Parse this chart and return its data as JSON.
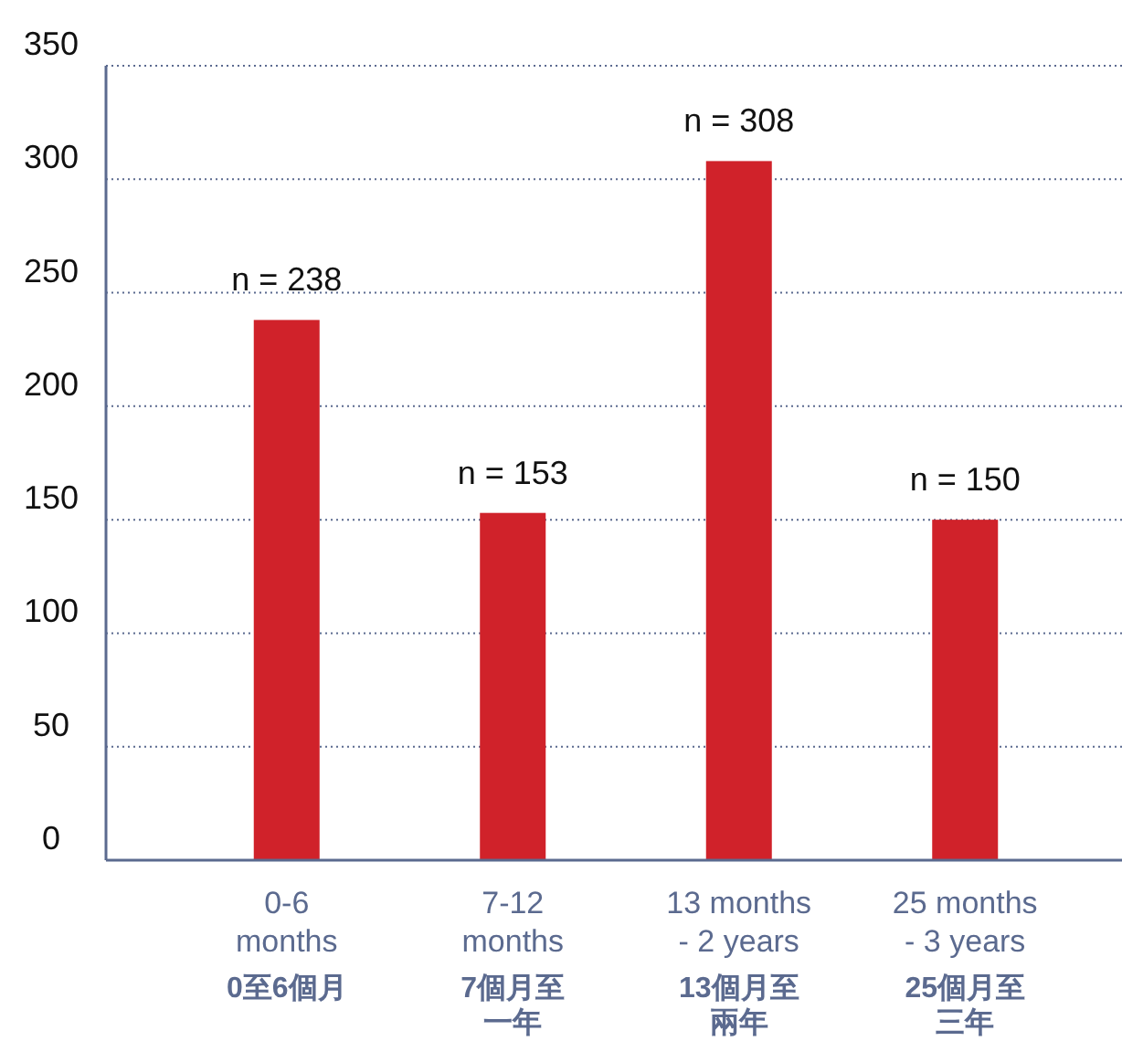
{
  "chart_data": {
    "type": "bar",
    "categories": [
      "0-6\nmonths\n0至6個月",
      "7-12\nmonths\n7個月至一年",
      "13 months\n- 2 years\n13個月至兩年",
      "25 months\n- 3 years\n25個月至三年"
    ],
    "values": [
      238,
      153,
      308,
      150
    ],
    "value_labels": [
      "n = 238",
      "n = 153",
      "n = 308",
      "n = 150"
    ],
    "color": "#d0222a",
    "ylim": [
      0,
      350
    ],
    "yticks": [
      0,
      50,
      100,
      150,
      200,
      250,
      300,
      350
    ],
    "grid": "y"
  }
}
